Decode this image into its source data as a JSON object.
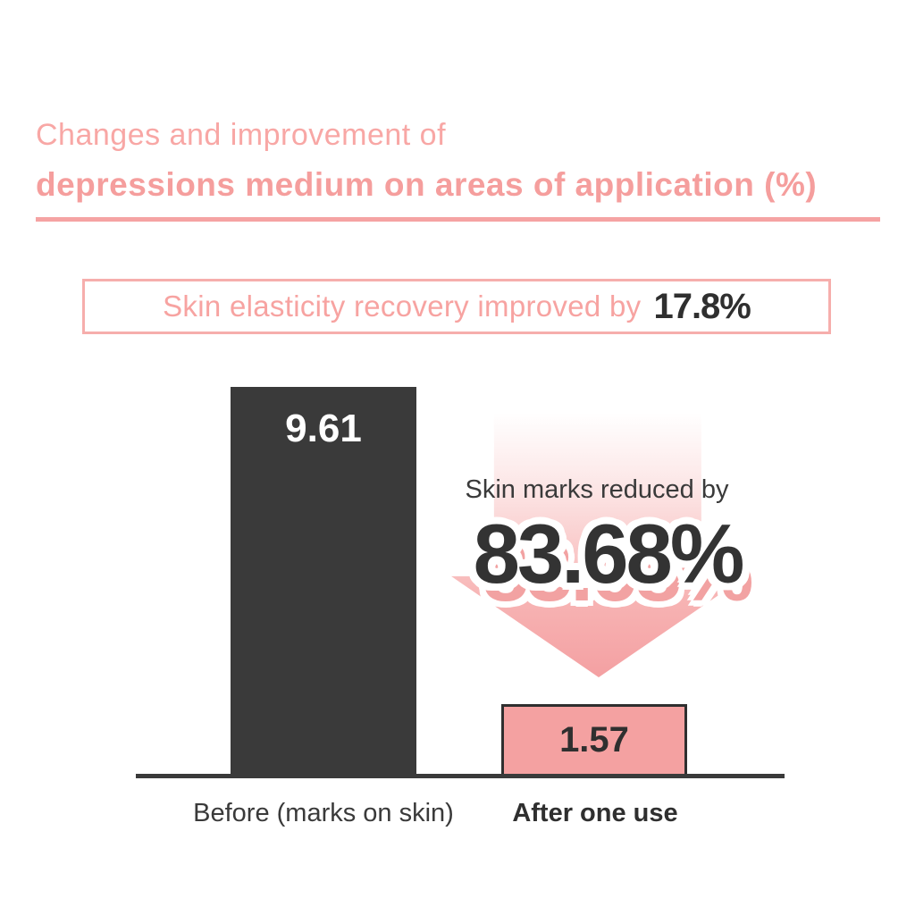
{
  "colors": {
    "accent_pink": "#f5a3a3",
    "bar_dark": "#3a3a3a",
    "bar_pink": "#f4a1a1",
    "text_dark": "#2f2f2f",
    "background": "#ffffff"
  },
  "header": {
    "title_line1": "Changes and improvement of",
    "title_line2": "depressions medium on areas of application (%)"
  },
  "highlight_box": {
    "text": "Skin elasticity recovery improved by",
    "value": "17.8%"
  },
  "arrow_callout": {
    "label": "Skin marks reduced by",
    "value": "83.68%"
  },
  "chart_data": {
    "type": "bar",
    "title": "Changes and improvement of depressions medium on areas of application (%)",
    "categories": [
      "Before (marks on skin)",
      "After one use"
    ],
    "values": [
      9.61,
      1.57
    ],
    "value_labels": [
      "9.61",
      "1.57"
    ],
    "bar_colors": [
      "#3a3a3a",
      "#f4a1a1"
    ],
    "ylim": [
      0,
      10
    ],
    "grid": false,
    "legend": false,
    "annotations": [
      "Skin elasticity recovery improved by 17.8%",
      "Skin marks reduced by 83.68%"
    ]
  }
}
